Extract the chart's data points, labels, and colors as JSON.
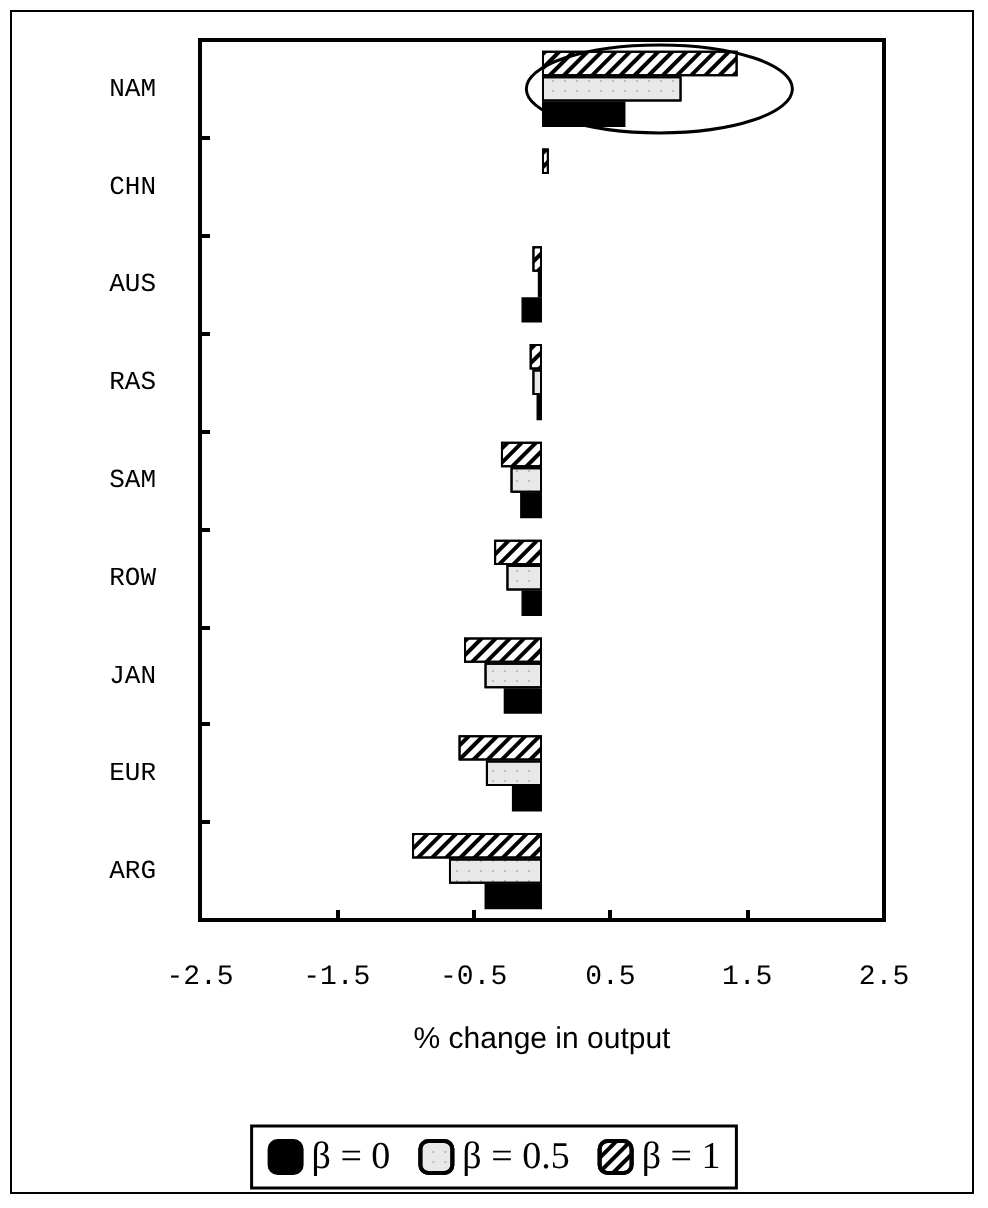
{
  "chart_data": {
    "type": "bar",
    "orientation": "horizontal",
    "xlabel": "% change in output",
    "categories": [
      "NAM",
      "CHN",
      "AUS",
      "RAS",
      "SAM",
      "ROW",
      "JAN",
      "EUR",
      "ARG"
    ],
    "series": [
      {
        "name": "β = 1",
        "color": "#ffffff",
        "values": [
          1.43,
          0.05,
          -0.07,
          -0.09,
          -0.3,
          -0.35,
          -0.57,
          -0.61,
          -0.95
        ]
      },
      {
        "name": "β = 0.5",
        "color": "#e8e8e8",
        "values": [
          1.02,
          0,
          -0.03,
          -0.07,
          -0.23,
          -0.26,
          -0.42,
          -0.41,
          -0.68
        ]
      },
      {
        "name": "β = 0",
        "color": "#000000",
        "values": [
          0.61,
          0,
          -0.15,
          -0.04,
          -0.16,
          -0.15,
          -0.28,
          -0.22,
          -0.42
        ]
      }
    ],
    "xlim": [
      -2.5,
      2.5
    ],
    "xticks": [
      -2.5,
      -1.5,
      -0.5,
      0.5,
      1.5,
      2.5
    ],
    "legend": "bottom",
    "grid": false
  }
}
